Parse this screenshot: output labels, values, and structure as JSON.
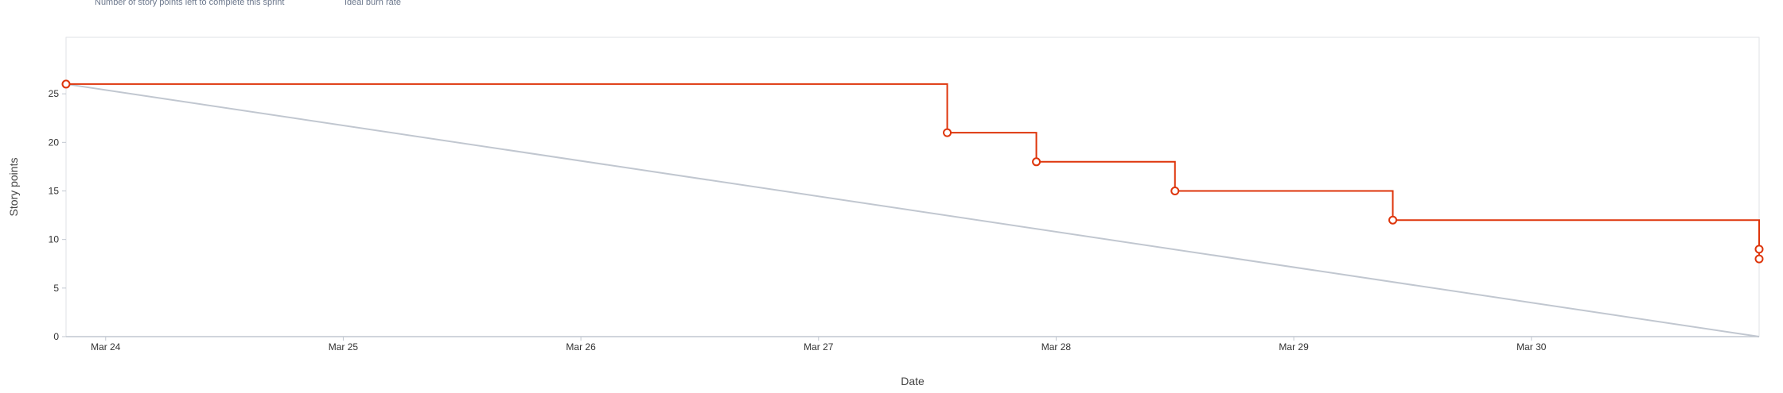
{
  "legend": {
    "actual": "Number of story points left to complete this sprint",
    "ideal": "Ideal burn rate"
  },
  "colors": {
    "actual": "#de350b",
    "ideal": "#c1c7d0",
    "frame": "#dfe1e6",
    "axis": "#c1c7d0"
  },
  "chart_data": {
    "type": "line",
    "xlabel": "Date",
    "ylabel": "Story points",
    "xlim": [
      "2024-03-23T20:00",
      "2024-03-30T23:00"
    ],
    "ylim": [
      0,
      30
    ],
    "x_ticks": [
      {
        "date": "2024-03-24T00:00",
        "label": "Mar 24"
      },
      {
        "date": "2024-03-25T00:00",
        "label": "Mar 25"
      },
      {
        "date": "2024-03-26T00:00",
        "label": "Mar 26"
      },
      {
        "date": "2024-03-27T00:00",
        "label": "Mar 27"
      },
      {
        "date": "2024-03-28T00:00",
        "label": "Mar 28"
      },
      {
        "date": "2024-03-29T00:00",
        "label": "Mar 29"
      },
      {
        "date": "2024-03-30T00:00",
        "label": "Mar 30"
      }
    ],
    "y_ticks": [
      0,
      5,
      10,
      15,
      20,
      25
    ],
    "grid": false,
    "legend_position": "top-left",
    "series": [
      {
        "name": "Number of story points left to complete this sprint",
        "style": "step",
        "points": [
          {
            "x": "2024-03-23T20:00",
            "y": 26
          },
          {
            "x": "2024-03-27T13:00",
            "y": 21
          },
          {
            "x": "2024-03-27T22:00",
            "y": 18
          },
          {
            "x": "2024-03-28T12:00",
            "y": 15
          },
          {
            "x": "2024-03-29T10:00",
            "y": 12
          },
          {
            "x": "2024-03-30T23:00",
            "y": 9
          },
          {
            "x": "2024-03-30T23:00",
            "y": 8
          }
        ]
      },
      {
        "name": "Ideal burn rate",
        "style": "line",
        "points": [
          {
            "x": "2024-03-23T20:00",
            "y": 26
          },
          {
            "x": "2024-03-30T23:00",
            "y": 0
          }
        ]
      }
    ]
  }
}
